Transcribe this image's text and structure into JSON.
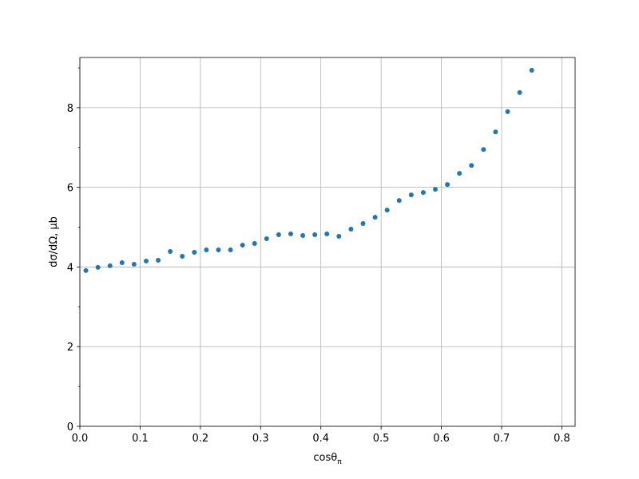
{
  "chart_data": {
    "type": "scatter",
    "xlabel": "cosθ",
    "xlabel_sub": "π",
    "ylabel": "dσ/dΩ, μb",
    "color": "#1f77b4",
    "grid": true,
    "x": [
      0.01,
      0.03,
      0.05,
      0.07,
      0.09,
      0.11,
      0.13,
      0.15,
      0.17,
      0.19,
      0.21,
      0.23,
      0.25,
      0.27,
      0.29,
      0.31,
      0.33,
      0.35,
      0.37,
      0.39,
      0.41,
      0.43,
      0.45,
      0.47,
      0.49,
      0.51,
      0.53,
      0.55,
      0.57,
      0.59,
      0.61,
      0.63,
      0.65,
      0.67,
      0.69,
      0.71,
      0.73,
      0.75
    ],
    "values": [
      3.91,
      3.99,
      4.03,
      4.11,
      4.07,
      4.15,
      4.17,
      4.39,
      4.27,
      4.37,
      4.43,
      4.43,
      4.43,
      4.55,
      4.59,
      4.71,
      4.81,
      4.83,
      4.79,
      4.81,
      4.83,
      4.77,
      4.95,
      5.09,
      5.25,
      5.43,
      5.67,
      5.81,
      5.87,
      5.95,
      6.07,
      6.35,
      6.55,
      6.95,
      7.39,
      7.9,
      8.38,
      8.94
    ],
    "xlim": [
      0,
      0.822
    ],
    "ylim": [
      0,
      9.26
    ],
    "xticks": [
      {
        "value": 0,
        "label": "0.0"
      },
      {
        "value": 0.1,
        "label": "0.1"
      },
      {
        "value": 0.2,
        "label": "0.2"
      },
      {
        "value": 0.3,
        "label": "0.3"
      },
      {
        "value": 0.4,
        "label": "0.4"
      },
      {
        "value": 0.5,
        "label": "0.5"
      },
      {
        "value": 0.6,
        "label": "0.6"
      },
      {
        "value": 0.7,
        "label": "0.7"
      },
      {
        "value": 0.8,
        "label": "0.8"
      }
    ],
    "yticks": [
      0,
      2,
      4,
      6,
      8
    ],
    "yminorticks": [
      1,
      3,
      5,
      7,
      9
    ]
  }
}
